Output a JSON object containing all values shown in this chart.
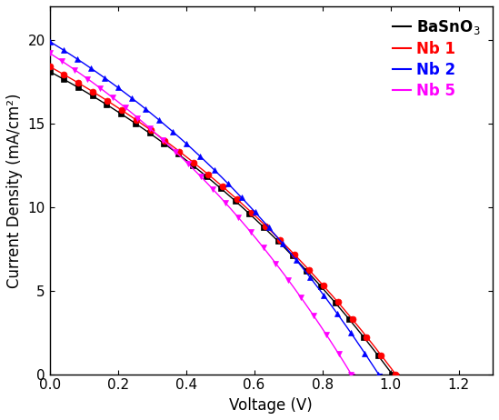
{
  "xlabel": "Voltage (V)",
  "ylabel": "Current Density (mA/cm²)",
  "xlim": [
    0.0,
    1.3
  ],
  "ylim": [
    0,
    22
  ],
  "yticks": [
    0,
    5,
    10,
    15,
    20
  ],
  "xticks": [
    0.0,
    0.2,
    0.4,
    0.6,
    0.8,
    1.0,
    1.2
  ],
  "series": [
    {
      "label": "BaSnO$_3$",
      "color": "#000000",
      "marker": "s",
      "marker_size": 4.5,
      "Voc": 1.005,
      "Jsc": 18.1,
      "n_factor": 42
    },
    {
      "label": "Nb 1",
      "color": "#ff0000",
      "marker": "o",
      "marker_size": 5,
      "Voc": 1.015,
      "Jsc": 18.4,
      "n_factor": 44
    },
    {
      "label": "Nb 2",
      "color": "#0000ff",
      "marker": "^",
      "marker_size": 5,
      "Voc": 0.965,
      "Jsc": 19.9,
      "n_factor": 40
    },
    {
      "label": "Nb 5",
      "color": "#ff00ff",
      "marker": "v",
      "marker_size": 5,
      "Voc": 0.885,
      "Jsc": 19.2,
      "n_factor": 36
    }
  ],
  "background_color": "#ffffff",
  "border_color": "#000000"
}
